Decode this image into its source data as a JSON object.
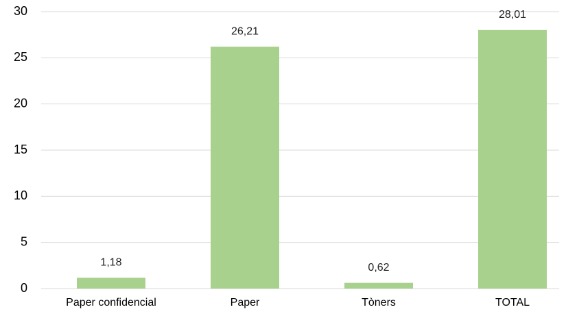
{
  "chart_data": {
    "type": "bar",
    "categories": [
      "Paper confidencial",
      "Paper",
      "Tòners",
      "TOTAL"
    ],
    "values": [
      1.18,
      26.21,
      0.62,
      28.01
    ],
    "value_labels": [
      "1,18",
      "26,21",
      "0,62",
      "28,01"
    ],
    "color": "#a9d18e",
    "ylim": [
      0,
      30
    ],
    "yticks": [
      0,
      5,
      10,
      15,
      20,
      25,
      30
    ],
    "grid": true
  }
}
